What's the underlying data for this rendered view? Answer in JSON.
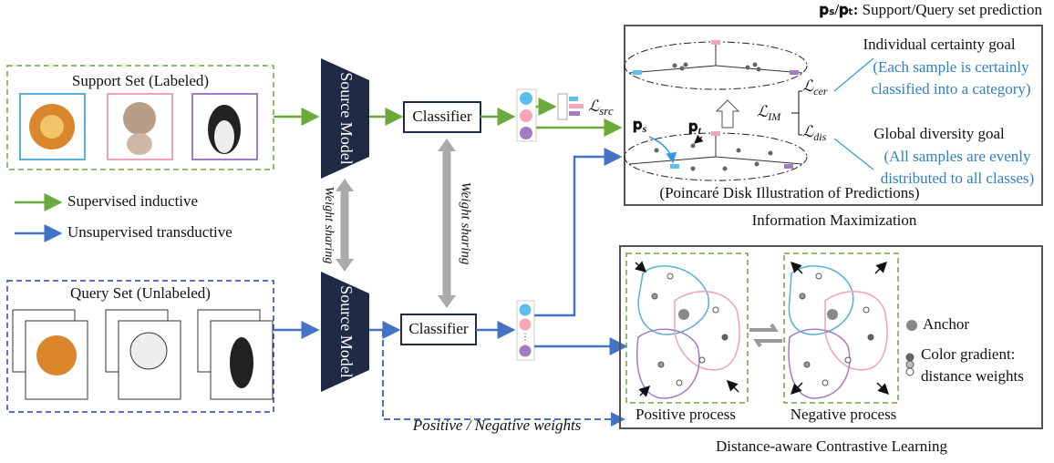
{
  "top_note": {
    "symbol": "𝐩ₛ/𝐩ₜ:",
    "text": "Support/Query set prediction"
  },
  "support_set": {
    "title": "Support Set (Labeled)"
  },
  "query_set": {
    "title": "Query Set (Unlabeled)"
  },
  "source_models": [
    "Source Model",
    "Source Model"
  ],
  "classifiers": [
    "Classifier",
    "Classifier"
  ],
  "weight_sharing": [
    "Weight sharing",
    "Weight sharing"
  ],
  "legend": [
    "Supervised inductive",
    "Unsupervised transductive"
  ],
  "loss_src": {
    "symbol": "ℒ",
    "sub": "src"
  },
  "info_max": {
    "title": "Information Maximization",
    "caption": "(Poincaré Disk Illustration of Predictions)",
    "pt": {
      "symbol": "𝐩",
      "sub": "t"
    },
    "ps": {
      "symbol": "𝐩",
      "sub": "s"
    },
    "loss_im": {
      "symbol": "ℒ",
      "sub": "IM"
    },
    "loss_cer": {
      "symbol": "ℒ",
      "sub": "cer"
    },
    "loss_dis": {
      "symbol": "ℒ",
      "sub": "dis"
    },
    "certainty": {
      "title": "Individual certainty goal",
      "desc": [
        "(Each sample is certainly",
        "classified into a category)"
      ]
    },
    "diversity": {
      "title": "Global diversity goal",
      "desc": [
        "(All samples are evenly",
        "distributed to all classes)"
      ]
    }
  },
  "contrastive": {
    "title": "Distance-aware Contrastive Learning",
    "positive": "Positive process",
    "negative": "Negative process",
    "anchor": "Anchor",
    "gradient": [
      "Color gradient:",
      "distance weights"
    ]
  },
  "weights_label": "Positive / Negative weights"
}
